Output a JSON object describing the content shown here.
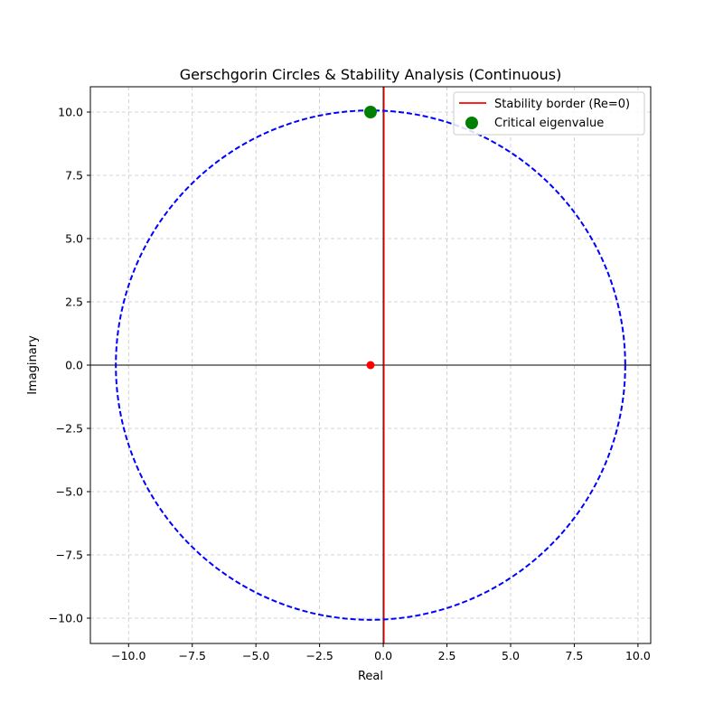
{
  "chart_data": {
    "type": "scatter",
    "title": "Gerschgorin Circles & Stability Analysis (Continuous)",
    "xlabel": "Real",
    "ylabel": "Imaginary",
    "xlim": [
      -11.5,
      10.5
    ],
    "ylim": [
      -11,
      11
    ],
    "xticks": [
      -10.0,
      -7.5,
      -5.0,
      -2.5,
      0.0,
      2.5,
      5.0,
      7.5,
      10.0
    ],
    "yticks": [
      -10.0,
      -7.5,
      -5.0,
      -2.5,
      0.0,
      2.5,
      5.0,
      7.5,
      10.0
    ],
    "xtick_labels": [
      "−10.0",
      "−7.5",
      "−5.0",
      "−2.5",
      "0.0",
      "2.5",
      "5.0",
      "7.5",
      "10.0"
    ],
    "ytick_labels": [
      "−10.0",
      "−7.5",
      "−5.0",
      "−2.5",
      "0.0",
      "2.5",
      "5.0",
      "7.5",
      "10.0"
    ],
    "grid": true,
    "legend_position": "top-right",
    "circles": [
      {
        "center": [
          -0.5,
          0.0
        ],
        "radius": 10.0,
        "color": "#0000ff",
        "style": "dashed"
      }
    ],
    "circle_centers": [
      {
        "x": -0.5,
        "y": 0.0,
        "color": "#ff0000"
      }
    ],
    "stability_border": {
      "x": 0.0,
      "color": "#ff0000",
      "label": "Stability border (Re=0)"
    },
    "critical_eigenvalue": {
      "x": -0.5,
      "y": 10.0,
      "color": "#008000",
      "label": "Critical eigenvalue"
    },
    "reference_axes_color": "#000000"
  }
}
